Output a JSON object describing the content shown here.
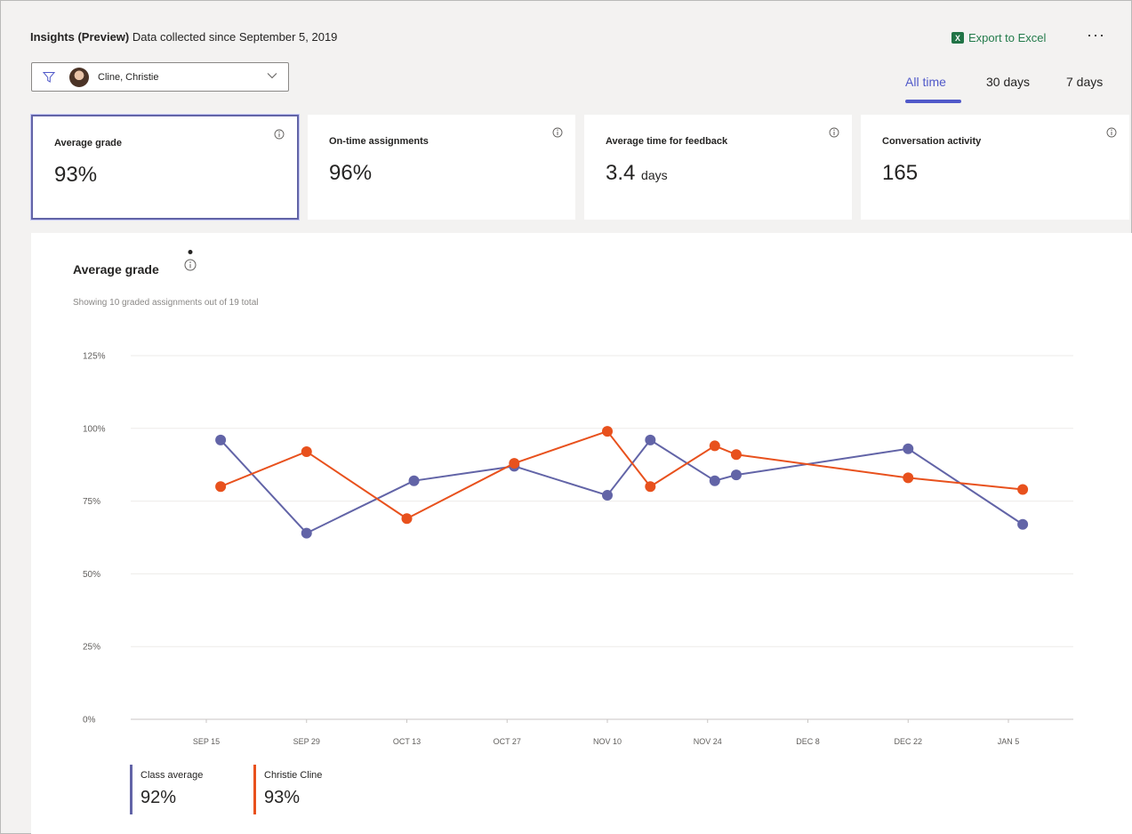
{
  "header": {
    "title_bold": "Insights (Preview)",
    "title_rest": "Data collected since September 5, 2019",
    "export_label": "Export to Excel",
    "more_label": "···"
  },
  "filter": {
    "selected_student": "Cline, Christie"
  },
  "time_tabs": [
    {
      "label": "All time",
      "active": true
    },
    {
      "label": "30 days",
      "active": false
    },
    {
      "label": "7 days",
      "active": false
    }
  ],
  "cards": [
    {
      "label": "Average grade",
      "value": "93%",
      "unit": "",
      "selected": true
    },
    {
      "label": "On-time assignments",
      "value": "96%",
      "unit": "",
      "selected": false
    },
    {
      "label": "Average time for feedback",
      "value": "3.4",
      "unit": "days",
      "selected": false
    },
    {
      "label": "Conversation activity",
      "value": "165",
      "unit": "",
      "selected": false
    }
  ],
  "chart": {
    "title": "Average grade",
    "subtitle": "Showing 10 graded assignments out of 19 total"
  },
  "chart_data": {
    "type": "line",
    "title": "Average grade",
    "ylabel": "",
    "xlabel": "",
    "ylim": [
      0,
      125
    ],
    "yticks": [
      "0%",
      "25%",
      "50%",
      "75%",
      "100%",
      "125%"
    ],
    "ytick_values": [
      0,
      25,
      50,
      75,
      100,
      125
    ],
    "xtick_labels": [
      "SEP 15",
      "SEP 29",
      "OCT 13",
      "OCT 27",
      "NOV 10",
      "NOV 24",
      "DEC 8",
      "DEC 22",
      "JAN 5"
    ],
    "xtick_days": [
      0,
      14,
      28,
      42,
      56,
      70,
      84,
      98,
      112
    ],
    "series": [
      {
        "name": "Class average",
        "color": "#6264a7",
        "x_days": [
          2,
          14,
          29,
          43,
          56,
          62,
          71,
          74,
          98,
          114
        ],
        "values": [
          96,
          64,
          82,
          87,
          77,
          96,
          82,
          84,
          93,
          67
        ]
      },
      {
        "name": "Christie Cline",
        "color": "#e8511d",
        "x_days": [
          2,
          14,
          28,
          43,
          56,
          62,
          71,
          74,
          98,
          114
        ],
        "values": [
          80,
          92,
          69,
          88,
          99,
          80,
          94,
          91,
          83,
          79
        ]
      }
    ]
  },
  "legend": [
    {
      "name": "Class average",
      "value": "92%",
      "color": "#6264a7"
    },
    {
      "name": "Christie Cline",
      "value": "93%",
      "color": "#e8511d"
    }
  ]
}
